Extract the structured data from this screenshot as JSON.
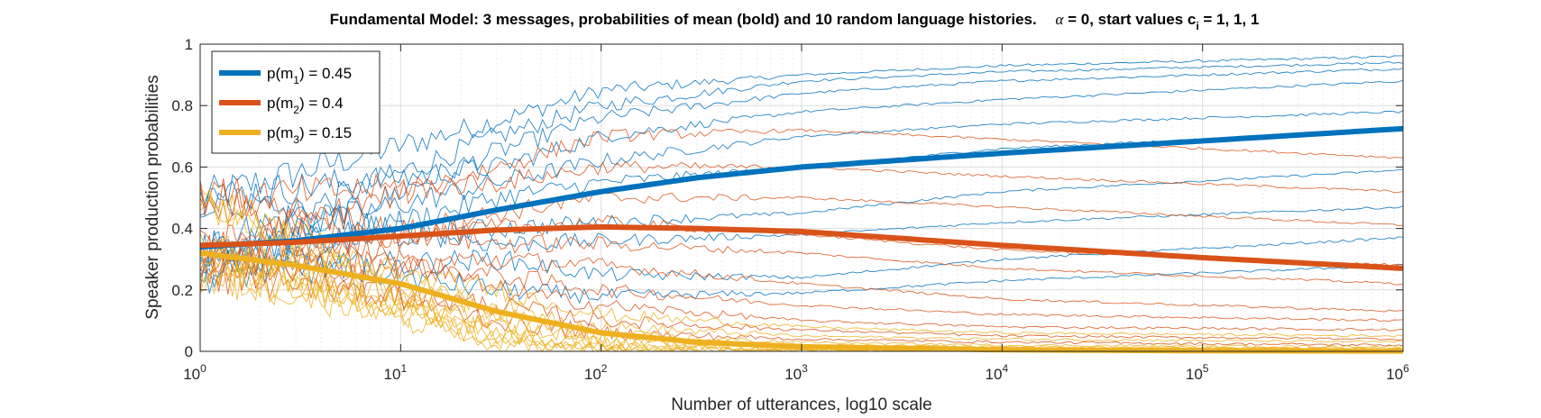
{
  "chart_data": {
    "type": "line",
    "title": {
      "main": "Fundamental Model:  3 messages, probabilities of mean (bold) and 10 random language histories.",
      "alpha_symbol": "α",
      "alpha_rest": " = 0, start values c",
      "c_subscript": "i",
      "c_values": " = 1, 1, 1"
    },
    "xlabel": "Number of utterances, log10 scale",
    "ylabel": "Speaker production probabilities",
    "x_scale": "log10",
    "xlim": [
      1,
      1000000
    ],
    "ylim": [
      0,
      1
    ],
    "grid": true,
    "x_ticks": [
      {
        "base": "10",
        "exp": "0",
        "value": 1
      },
      {
        "base": "10",
        "exp": "1",
        "value": 10
      },
      {
        "base": "10",
        "exp": "2",
        "value": 100
      },
      {
        "base": "10",
        "exp": "3",
        "value": 1000
      },
      {
        "base": "10",
        "exp": "4",
        "value": 10000
      },
      {
        "base": "10",
        "exp": "5",
        "value": 100000
      },
      {
        "base": "10",
        "exp": "6",
        "value": 1000000
      }
    ],
    "y_ticks": [
      {
        "label": "0",
        "value": 0
      },
      {
        "label": "0.2",
        "value": 0.2
      },
      {
        "label": "0.4",
        "value": 0.4
      },
      {
        "label": "0.6",
        "value": 0.6
      },
      {
        "label": "0.8",
        "value": 0.8
      },
      {
        "label": "1",
        "value": 1
      }
    ],
    "legend": {
      "location": "top-left",
      "entries": [
        {
          "pre": "p(m",
          "sub": "1",
          "post": ") = 0.45",
          "color": "#0072BD"
        },
        {
          "pre": "p(m",
          "sub": "2",
          "post": ") = 0.4",
          "color": "#D95319"
        },
        {
          "pre": "p(m",
          "sub": "3",
          "post": ") = 0.15",
          "color": "#EDB120"
        }
      ]
    },
    "mean_series": [
      {
        "name": "p(m1) mean",
        "color": "#0072BD",
        "x": [
          1,
          3,
          10,
          30,
          100,
          300,
          1000,
          10000,
          100000,
          1000000
        ],
        "y": [
          0.34,
          0.36,
          0.4,
          0.46,
          0.52,
          0.565,
          0.6,
          0.645,
          0.685,
          0.725
        ]
      },
      {
        "name": "p(m2) mean",
        "color": "#D95319",
        "x": [
          1,
          3,
          10,
          30,
          100,
          300,
          1000,
          10000,
          100000,
          1000000
        ],
        "y": [
          0.345,
          0.355,
          0.375,
          0.395,
          0.405,
          0.4,
          0.39,
          0.345,
          0.305,
          0.27
        ]
      },
      {
        "name": "p(m3) mean",
        "color": "#EDB120",
        "x": [
          1,
          3,
          10,
          30,
          100,
          300,
          1000,
          10000,
          100000,
          1000000
        ],
        "y": [
          0.32,
          0.28,
          0.22,
          0.13,
          0.06,
          0.03,
          0.015,
          0.005,
          0.002,
          0.001
        ]
      }
    ],
    "histories": [
      {
        "name": "m1 history 1",
        "color": "#0072BD",
        "x": [
          1,
          30,
          100,
          1000,
          10000,
          1000000
        ],
        "y": [
          0.5,
          0.75,
          0.85,
          0.9,
          0.93,
          0.96
        ]
      },
      {
        "name": "m1 history 2",
        "color": "#0072BD",
        "x": [
          1,
          30,
          100,
          1000,
          10000,
          1000000
        ],
        "y": [
          0.33,
          0.7,
          0.8,
          0.88,
          0.91,
          0.94
        ]
      },
      {
        "name": "m1 history 3",
        "color": "#0072BD",
        "x": [
          1,
          30,
          100,
          1000,
          10000,
          1000000
        ],
        "y": [
          0.25,
          0.65,
          0.76,
          0.84,
          0.88,
          0.92
        ]
      },
      {
        "name": "m1 history 4",
        "color": "#0072BD",
        "x": [
          1,
          30,
          100,
          1000,
          10000,
          1000000
        ],
        "y": [
          0.5,
          0.6,
          0.7,
          0.78,
          0.82,
          0.88
        ]
      },
      {
        "name": "m1 history 5",
        "color": "#0072BD",
        "x": [
          1,
          30,
          100,
          1000,
          10000,
          1000000
        ],
        "y": [
          0.33,
          0.55,
          0.62,
          0.7,
          0.74,
          0.78
        ]
      },
      {
        "name": "m1 history 6",
        "color": "#0072BD",
        "x": [
          1,
          30,
          100,
          1000,
          10000,
          1000000
        ],
        "y": [
          0.25,
          0.5,
          0.55,
          0.6,
          0.66,
          0.72
        ]
      },
      {
        "name": "m1 history 7",
        "color": "#0072BD",
        "x": [
          1,
          30,
          100,
          1000,
          10000,
          1000000
        ],
        "y": [
          0.33,
          0.4,
          0.42,
          0.45,
          0.52,
          0.59
        ]
      },
      {
        "name": "m1 history 8",
        "color": "#0072BD",
        "x": [
          1,
          30,
          100,
          1000,
          10000,
          1000000
        ],
        "y": [
          0.5,
          0.35,
          0.36,
          0.38,
          0.42,
          0.47
        ]
      },
      {
        "name": "m1 history 9",
        "color": "#0072BD",
        "x": [
          1,
          30,
          100,
          1000,
          10000,
          1000000
        ],
        "y": [
          0.25,
          0.3,
          0.25,
          0.24,
          0.3,
          0.37
        ]
      },
      {
        "name": "m1 history 10",
        "color": "#0072BD",
        "x": [
          1,
          30,
          100,
          1000,
          10000,
          1000000
        ],
        "y": [
          0.33,
          0.2,
          0.18,
          0.19,
          0.23,
          0.28
        ]
      },
      {
        "name": "m2 history 1",
        "color": "#D95319",
        "x": [
          1,
          30,
          100,
          1000,
          10000,
          1000000
        ],
        "y": [
          0.33,
          0.6,
          0.7,
          0.72,
          0.69,
          0.63
        ]
      },
      {
        "name": "m2 history 2",
        "color": "#D95319",
        "x": [
          1,
          30,
          100,
          1000,
          10000,
          1000000
        ],
        "y": [
          0.5,
          0.55,
          0.6,
          0.6,
          0.57,
          0.52
        ]
      },
      {
        "name": "m2 history 3",
        "color": "#D95319",
        "x": [
          1,
          30,
          100,
          1000,
          10000,
          1000000
        ],
        "y": [
          0.25,
          0.45,
          0.5,
          0.5,
          0.47,
          0.41
        ]
      },
      {
        "name": "m2 history 4",
        "color": "#D95319",
        "x": [
          1,
          30,
          100,
          1000,
          10000,
          1000000
        ],
        "y": [
          0.33,
          0.4,
          0.42,
          0.38,
          0.33,
          0.28
        ]
      },
      {
        "name": "m2 history 5",
        "color": "#D95319",
        "x": [
          1,
          30,
          100,
          1000,
          10000,
          1000000
        ],
        "y": [
          0.5,
          0.35,
          0.35,
          0.32,
          0.27,
          0.22
        ]
      },
      {
        "name": "m2 history 6",
        "color": "#D95319",
        "x": [
          1,
          30,
          100,
          1000,
          10000,
          1000000
        ],
        "y": [
          0.25,
          0.3,
          0.28,
          0.22,
          0.17,
          0.13
        ]
      },
      {
        "name": "m2 history 7",
        "color": "#D95319",
        "x": [
          1,
          30,
          100,
          1000,
          10000,
          1000000
        ],
        "y": [
          0.33,
          0.25,
          0.2,
          0.15,
          0.12,
          0.1
        ]
      },
      {
        "name": "m2 history 8",
        "color": "#D95319",
        "x": [
          1,
          30,
          100,
          1000,
          10000,
          1000000
        ],
        "y": [
          0.5,
          0.2,
          0.15,
          0.1,
          0.08,
          0.07
        ]
      },
      {
        "name": "m2 history 9",
        "color": "#D95319",
        "x": [
          1,
          30,
          100,
          1000,
          10000,
          1000000
        ],
        "y": [
          0.25,
          0.15,
          0.1,
          0.07,
          0.05,
          0.04
        ]
      },
      {
        "name": "m2 history 10",
        "color": "#D95319",
        "x": [
          1,
          30,
          100,
          1000,
          10000,
          1000000
        ],
        "y": [
          0.33,
          0.1,
          0.06,
          0.04,
          0.03,
          0.02
        ]
      },
      {
        "name": "m3 history 1",
        "color": "#EDB120",
        "x": [
          1,
          30,
          100,
          1000,
          10000,
          1000000
        ],
        "y": [
          0.33,
          0.2,
          0.12,
          0.08,
          0.06,
          0.05
        ]
      },
      {
        "name": "m3 history 2",
        "color": "#EDB120",
        "x": [
          1,
          30,
          100,
          1000,
          10000,
          1000000
        ],
        "y": [
          0.25,
          0.15,
          0.08,
          0.05,
          0.04,
          0.03
        ]
      },
      {
        "name": "m3 history 3",
        "color": "#EDB120",
        "x": [
          1,
          30,
          100,
          1000,
          10000,
          1000000
        ],
        "y": [
          0.5,
          0.12,
          0.05,
          0.03,
          0.02,
          0.015
        ]
      },
      {
        "name": "m3 history 4",
        "color": "#EDB120",
        "x": [
          1,
          30,
          100,
          1000,
          10000,
          1000000
        ],
        "y": [
          0.33,
          0.1,
          0.04,
          0.02,
          0.015,
          0.01
        ]
      },
      {
        "name": "m3 history 5",
        "color": "#EDB120",
        "x": [
          1,
          30,
          100,
          1000,
          10000,
          1000000
        ],
        "y": [
          0.25,
          0.08,
          0.03,
          0.015,
          0.01,
          0.008
        ]
      },
      {
        "name": "m3 history 6",
        "color": "#EDB120",
        "x": [
          1,
          30,
          100,
          1000,
          10000,
          1000000
        ],
        "y": [
          0.33,
          0.06,
          0.02,
          0.01,
          0.008,
          0.005
        ]
      },
      {
        "name": "m3 history 7",
        "color": "#EDB120",
        "x": [
          1,
          30,
          100,
          1000,
          10000,
          1000000
        ],
        "y": [
          0.5,
          0.05,
          0.015,
          0.008,
          0.005,
          0.003
        ]
      },
      {
        "name": "m3 history 8",
        "color": "#EDB120",
        "x": [
          1,
          30,
          100,
          1000,
          10000,
          1000000
        ],
        "y": [
          0.25,
          0.04,
          0.01,
          0.005,
          0.003,
          0.002
        ]
      },
      {
        "name": "m3 history 9",
        "color": "#EDB120",
        "x": [
          1,
          30,
          100,
          1000,
          10000,
          1000000
        ],
        "y": [
          0.33,
          0.03,
          0.008,
          0.004,
          0.002,
          0.001
        ]
      },
      {
        "name": "m3 history 10",
        "color": "#EDB120",
        "x": [
          1,
          30,
          100,
          1000,
          10000,
          1000000
        ],
        "y": [
          0.5,
          0.02,
          0.005,
          0.003,
          0.001,
          0.001
        ]
      }
    ]
  }
}
